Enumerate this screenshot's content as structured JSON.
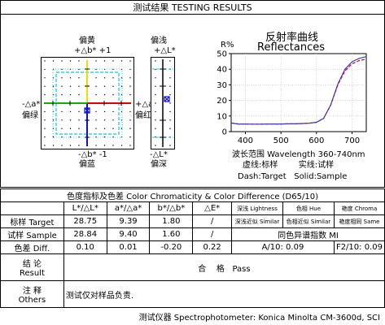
{
  "header": {
    "title": "测试结果 TESTING RESULTS"
  },
  "color_plot": {
    "top_labels": [
      "偏黄",
      "+△b*  +1"
    ],
    "bottom_labels": [
      "-△b*  -1",
      "偏蓝"
    ],
    "left_labels": [
      "-△a*",
      "偏绿"
    ],
    "right_labels": [
      "+△a*",
      "偏红"
    ]
  },
  "lightness_plot": {
    "top_labels": [
      "偏浅",
      "+△L*"
    ],
    "bottom_labels": [
      "-△L*",
      "偏深"
    ]
  },
  "reflectance": {
    "title_cn": "反射率曲线",
    "title_en": "Reflectances",
    "ylabel": "R%",
    "footer_range": "波长范围 Wavelength 360-740nm",
    "footer_legend_cn": "虚线:标样        实线:试样",
    "footer_legend_en": "Dash:Target   Solid:Sample"
  },
  "chart_data": {
    "type": "line",
    "title": "Reflectances",
    "ylabel": "R%",
    "xlabel": "波长范围 Wavelength 360-740nm",
    "x_ticks": [
      400,
      500,
      600,
      700
    ],
    "y_ticks": [
      0,
      10,
      20,
      30,
      40,
      50
    ],
    "xlim": [
      360,
      740
    ],
    "ylim": [
      0,
      50
    ],
    "x": [
      360,
      380,
      400,
      420,
      440,
      460,
      480,
      500,
      520,
      540,
      560,
      580,
      600,
      620,
      640,
      660,
      680,
      700,
      720,
      740
    ],
    "series": [
      {
        "name": "Dash:Target",
        "values": [
          5.5,
          4.9,
          4.9,
          4.8,
          4.8,
          4.9,
          4.9,
          4.9,
          5.0,
          5.0,
          5.2,
          5.4,
          6.0,
          8.5,
          17.0,
          30.0,
          39.0,
          43.5,
          45.5,
          46.5
        ],
        "color": "#cc0033",
        "dash": true
      },
      {
        "name": "Solid:Sample",
        "values": [
          5.5,
          4.9,
          4.9,
          4.8,
          4.8,
          4.9,
          4.9,
          4.9,
          5.0,
          5.0,
          5.2,
          5.4,
          6.0,
          8.5,
          17.2,
          30.5,
          40.0,
          44.8,
          47.0,
          48.0
        ],
        "color": "#4a3aa8",
        "dash": false
      }
    ]
  },
  "table": {
    "title": "色度指标及色差 Color Chromaticity & Color Difference (D65/10)",
    "col_headers": [
      "L*/△L*",
      "a*/△a*",
      "b*/△b*",
      "△E*"
    ],
    "rows": [
      {
        "label": "标样 Target",
        "values": [
          "28.75",
          "9.39",
          "1.80",
          "/"
        ]
      },
      {
        "label": "试样 Sample",
        "values": [
          "28.84",
          "9.40",
          "1.60",
          "/"
        ]
      },
      {
        "label": "色差 Diff.",
        "values": [
          "0.10",
          "0.01",
          "-0.20",
          "0.22"
        ]
      }
    ],
    "right_header": [
      "深浅 Lightness",
      "色相 Hue",
      "艳度 Chroma"
    ],
    "right_row1": [
      "深浅近似 Similar",
      "色相近似 Similar",
      "艳度相同 Same"
    ],
    "right_row2": "同色异谱指数 MI",
    "a10": "A/10: 0.09",
    "f2_10": "F2/10: 0.09",
    "conclusion_label": "结 论",
    "conclusion_label_en": "Result",
    "conclusion_value": "合    格   Pass",
    "notes_label": "注 释",
    "notes_label_en": "Others",
    "notes_value": "测试仅对样品负责."
  },
  "footer": {
    "instrument": "测试仪器 Spectrophotometer: Konica Minolta CM-3600d, SCI"
  },
  "colors": {
    "cyan": "#00c8f0",
    "green": "#10b000",
    "red": "#e00000",
    "yellow": "#e8e000",
    "blue": "#1010d0"
  }
}
